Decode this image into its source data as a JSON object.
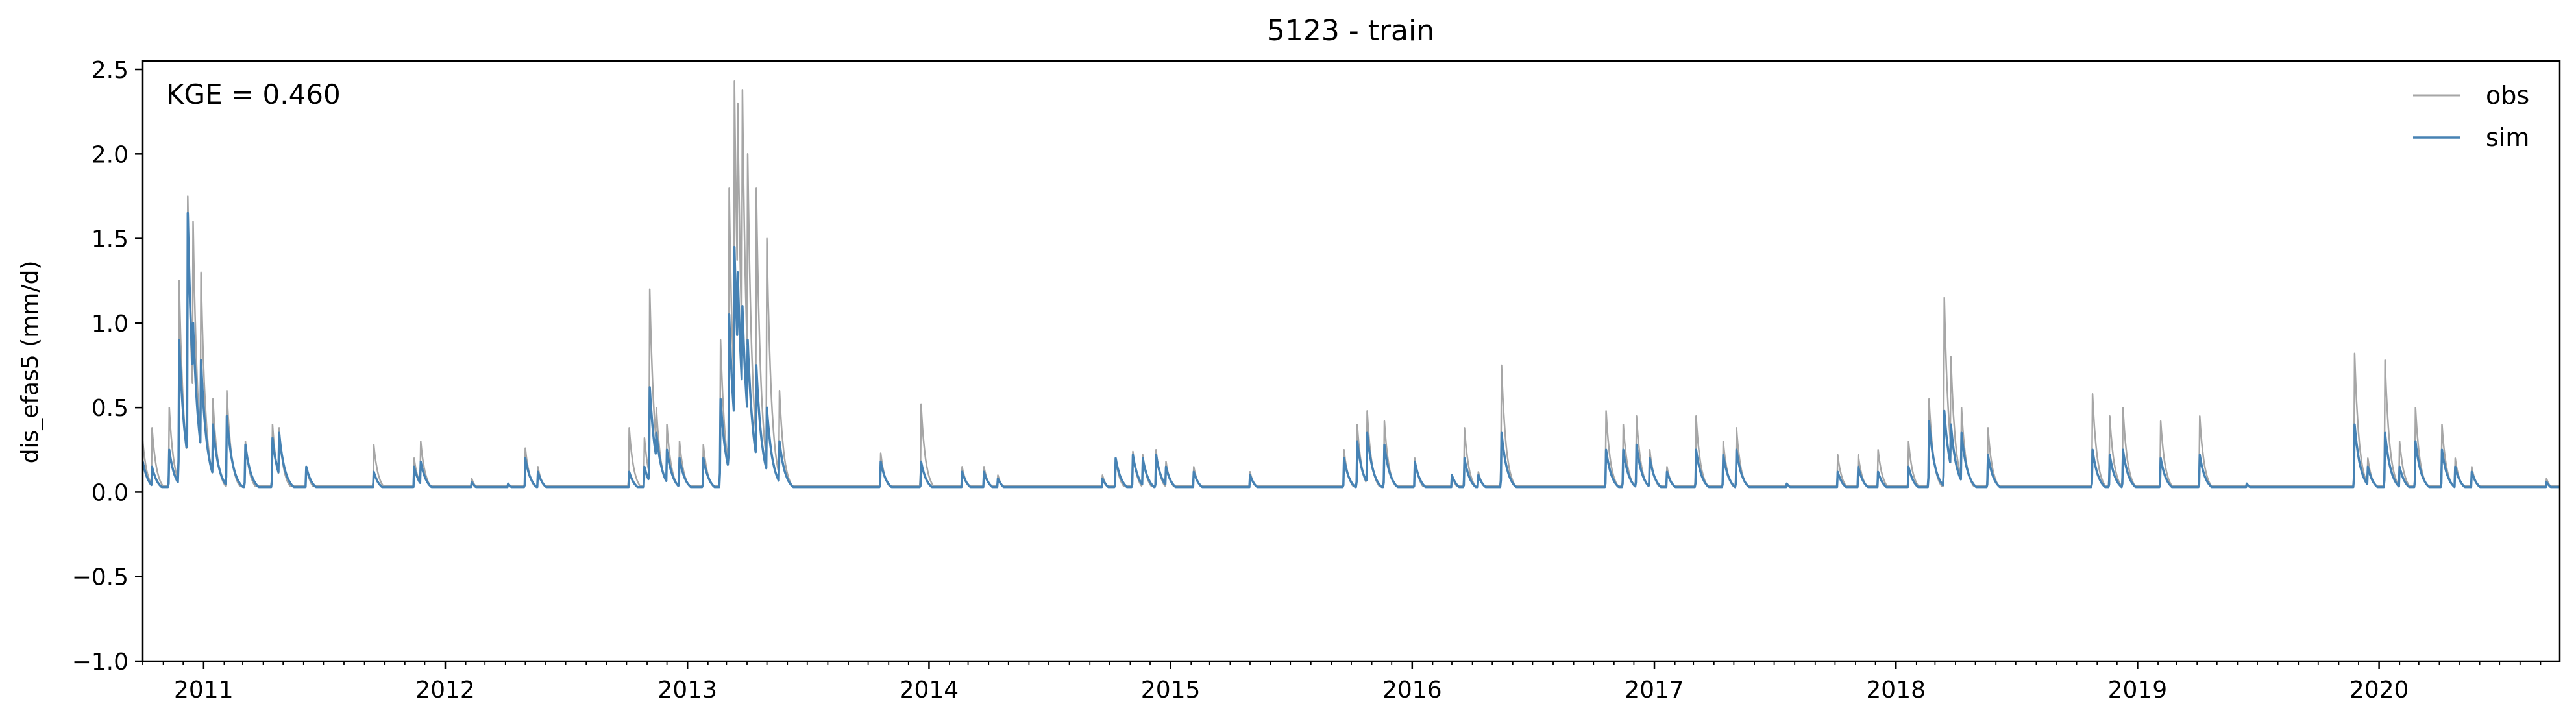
{
  "chart_data": {
    "type": "line",
    "title": "5123 - train",
    "xlabel": "",
    "ylabel": "dis_efas5 (mm/d)",
    "annotation": "KGE = 0.460",
    "xlim": [
      "2010-10-01",
      "2020-09-30"
    ],
    "ylim": [
      -1.0,
      2.55
    ],
    "yticks": [
      -1.0,
      -0.5,
      0.0,
      0.5,
      1.0,
      1.5,
      2.0,
      2.5
    ],
    "ytick_labels": [
      "−1.0",
      "−0.5",
      "0.0",
      "0.5",
      "1.0",
      "1.5",
      "2.0",
      "2.5"
    ],
    "xtick_labels": [
      "2011",
      "2012",
      "2013",
      "2014",
      "2015",
      "2016",
      "2017",
      "2018",
      "2019",
      "2020"
    ],
    "grid": false,
    "legend": {
      "placement": "top-right"
    },
    "series": [
      {
        "name": "obs",
        "color": "#a6a6a6",
        "base": 0.035,
        "recession_days": 7,
        "events": [
          [
            "2010-10-01",
            0.3
          ],
          [
            "2010-10-15",
            0.38
          ],
          [
            "2010-11-10",
            0.5
          ],
          [
            "2010-11-25",
            1.25
          ],
          [
            "2010-12-08",
            1.75
          ],
          [
            "2010-12-16",
            1.6
          ],
          [
            "2010-12-28",
            1.3
          ],
          [
            "2011-01-15",
            0.55
          ],
          [
            "2011-02-05",
            0.6
          ],
          [
            "2011-03-05",
            0.3
          ],
          [
            "2011-04-15",
            0.4
          ],
          [
            "2011-04-25",
            0.38
          ],
          [
            "2011-06-05",
            0.15
          ],
          [
            "2011-09-15",
            0.28
          ],
          [
            "2011-11-15",
            0.2
          ],
          [
            "2011-11-25",
            0.3
          ],
          [
            "2012-02-10",
            0.08
          ],
          [
            "2012-04-05",
            0.05
          ],
          [
            "2012-05-01",
            0.26
          ],
          [
            "2012-05-20",
            0.15
          ],
          [
            "2012-10-05",
            0.38
          ],
          [
            "2012-10-28",
            0.32
          ],
          [
            "2012-11-05",
            1.2
          ],
          [
            "2012-11-15",
            0.5
          ],
          [
            "2012-12-01",
            0.4
          ],
          [
            "2012-12-20",
            0.3
          ],
          [
            "2013-01-25",
            0.28
          ],
          [
            "2013-02-20",
            0.9
          ],
          [
            "2013-03-05",
            1.8
          ],
          [
            "2013-03-13",
            2.43
          ],
          [
            "2013-03-18",
            2.3
          ],
          [
            "2013-03-25",
            2.38
          ],
          [
            "2013-04-02",
            2.0
          ],
          [
            "2013-04-15",
            1.8
          ],
          [
            "2013-05-01",
            1.5
          ],
          [
            "2013-05-20",
            0.6
          ],
          [
            "2013-10-20",
            0.23
          ],
          [
            "2013-12-20",
            0.52
          ],
          [
            "2014-02-20",
            0.15
          ],
          [
            "2014-03-25",
            0.15
          ],
          [
            "2014-04-15",
            0.1
          ],
          [
            "2014-09-20",
            0.1
          ],
          [
            "2014-10-10",
            0.2
          ],
          [
            "2014-11-05",
            0.24
          ],
          [
            "2014-11-20",
            0.22
          ],
          [
            "2014-12-10",
            0.25
          ],
          [
            "2014-12-25",
            0.18
          ],
          [
            "2015-02-05",
            0.15
          ],
          [
            "2015-05-01",
            0.12
          ],
          [
            "2015-09-20",
            0.25
          ],
          [
            "2015-10-10",
            0.4
          ],
          [
            "2015-10-25",
            0.48
          ],
          [
            "2015-11-20",
            0.42
          ],
          [
            "2016-01-05",
            0.2
          ],
          [
            "2016-03-01",
            0.1
          ],
          [
            "2016-03-20",
            0.38
          ],
          [
            "2016-04-10",
            0.12
          ],
          [
            "2016-05-15",
            0.75
          ],
          [
            "2016-10-20",
            0.48
          ],
          [
            "2016-11-15",
            0.4
          ],
          [
            "2016-12-05",
            0.45
          ],
          [
            "2016-12-25",
            0.25
          ],
          [
            "2017-01-20",
            0.15
          ],
          [
            "2017-03-05",
            0.45
          ],
          [
            "2017-04-15",
            0.3
          ],
          [
            "2017-05-05",
            0.38
          ],
          [
            "2017-07-20",
            0.05
          ],
          [
            "2017-10-05",
            0.22
          ],
          [
            "2017-11-05",
            0.22
          ],
          [
            "2017-12-05",
            0.25
          ],
          [
            "2018-01-20",
            0.3
          ],
          [
            "2018-02-20",
            0.55
          ],
          [
            "2018-03-15",
            1.15
          ],
          [
            "2018-03-25",
            0.8
          ],
          [
            "2018-04-10",
            0.5
          ],
          [
            "2018-05-20",
            0.38
          ],
          [
            "2018-10-25",
            0.58
          ],
          [
            "2018-11-20",
            0.45
          ],
          [
            "2018-12-10",
            0.5
          ],
          [
            "2019-02-05",
            0.42
          ],
          [
            "2019-04-05",
            0.45
          ],
          [
            "2019-06-15",
            0.05
          ],
          [
            "2019-11-25",
            0.82
          ],
          [
            "2019-12-15",
            0.2
          ],
          [
            "2020-01-10",
            0.78
          ],
          [
            "2020-02-01",
            0.3
          ],
          [
            "2020-02-25",
            0.5
          ],
          [
            "2020-04-05",
            0.4
          ],
          [
            "2020-04-25",
            0.2
          ],
          [
            "2020-05-20",
            0.15
          ],
          [
            "2020-09-10",
            0.08
          ]
        ]
      },
      {
        "name": "sim",
        "color": "#4682b4",
        "base": 0.03,
        "recession_days": 9,
        "events": [
          [
            "2010-10-01",
            0.18
          ],
          [
            "2010-10-15",
            0.15
          ],
          [
            "2010-11-10",
            0.25
          ],
          [
            "2010-11-25",
            0.9
          ],
          [
            "2010-12-08",
            1.65
          ],
          [
            "2010-12-16",
            1.0
          ],
          [
            "2010-12-28",
            0.78
          ],
          [
            "2011-01-15",
            0.4
          ],
          [
            "2011-02-05",
            0.45
          ],
          [
            "2011-03-05",
            0.28
          ],
          [
            "2011-04-15",
            0.32
          ],
          [
            "2011-04-25",
            0.35
          ],
          [
            "2011-06-05",
            0.15
          ],
          [
            "2011-09-15",
            0.12
          ],
          [
            "2011-11-15",
            0.15
          ],
          [
            "2011-11-25",
            0.18
          ],
          [
            "2012-02-10",
            0.06
          ],
          [
            "2012-04-05",
            0.05
          ],
          [
            "2012-05-01",
            0.2
          ],
          [
            "2012-05-20",
            0.12
          ],
          [
            "2012-10-05",
            0.12
          ],
          [
            "2012-10-28",
            0.15
          ],
          [
            "2012-11-05",
            0.62
          ],
          [
            "2012-11-15",
            0.35
          ],
          [
            "2012-12-01",
            0.25
          ],
          [
            "2012-12-20",
            0.2
          ],
          [
            "2013-01-25",
            0.2
          ],
          [
            "2013-02-20",
            0.55
          ],
          [
            "2013-03-05",
            1.05
          ],
          [
            "2013-03-13",
            1.45
          ],
          [
            "2013-03-18",
            1.3
          ],
          [
            "2013-03-25",
            1.1
          ],
          [
            "2013-04-02",
            0.9
          ],
          [
            "2013-04-15",
            0.75
          ],
          [
            "2013-05-01",
            0.5
          ],
          [
            "2013-05-20",
            0.3
          ],
          [
            "2013-10-20",
            0.18
          ],
          [
            "2013-12-20",
            0.18
          ],
          [
            "2014-02-20",
            0.12
          ],
          [
            "2014-03-25",
            0.12
          ],
          [
            "2014-04-15",
            0.08
          ],
          [
            "2014-09-20",
            0.08
          ],
          [
            "2014-10-10",
            0.2
          ],
          [
            "2014-11-05",
            0.22
          ],
          [
            "2014-11-20",
            0.2
          ],
          [
            "2014-12-10",
            0.22
          ],
          [
            "2014-12-25",
            0.15
          ],
          [
            "2015-02-05",
            0.12
          ],
          [
            "2015-05-01",
            0.1
          ],
          [
            "2015-09-20",
            0.2
          ],
          [
            "2015-10-10",
            0.3
          ],
          [
            "2015-10-25",
            0.35
          ],
          [
            "2015-11-20",
            0.28
          ],
          [
            "2016-01-05",
            0.18
          ],
          [
            "2016-03-01",
            0.1
          ],
          [
            "2016-03-20",
            0.2
          ],
          [
            "2016-04-10",
            0.1
          ],
          [
            "2016-05-15",
            0.35
          ],
          [
            "2016-10-20",
            0.25
          ],
          [
            "2016-11-15",
            0.25
          ],
          [
            "2016-12-05",
            0.28
          ],
          [
            "2016-12-25",
            0.2
          ],
          [
            "2017-01-20",
            0.12
          ],
          [
            "2017-03-05",
            0.25
          ],
          [
            "2017-04-15",
            0.22
          ],
          [
            "2017-05-05",
            0.25
          ],
          [
            "2017-07-20",
            0.05
          ],
          [
            "2017-10-05",
            0.12
          ],
          [
            "2017-11-05",
            0.15
          ],
          [
            "2017-12-05",
            0.12
          ],
          [
            "2018-01-20",
            0.15
          ],
          [
            "2018-02-20",
            0.42
          ],
          [
            "2018-03-15",
            0.48
          ],
          [
            "2018-03-25",
            0.4
          ],
          [
            "2018-04-10",
            0.35
          ],
          [
            "2018-05-20",
            0.22
          ],
          [
            "2018-10-25",
            0.25
          ],
          [
            "2018-11-20",
            0.22
          ],
          [
            "2018-12-10",
            0.25
          ],
          [
            "2019-02-05",
            0.2
          ],
          [
            "2019-04-05",
            0.22
          ],
          [
            "2019-06-15",
            0.05
          ],
          [
            "2019-11-25",
            0.4
          ],
          [
            "2019-12-15",
            0.15
          ],
          [
            "2020-01-10",
            0.35
          ],
          [
            "2020-02-01",
            0.15
          ],
          [
            "2020-02-25",
            0.3
          ],
          [
            "2020-04-05",
            0.25
          ],
          [
            "2020-04-25",
            0.15
          ],
          [
            "2020-05-20",
            0.12
          ],
          [
            "2020-09-10",
            0.06
          ]
        ]
      }
    ]
  }
}
